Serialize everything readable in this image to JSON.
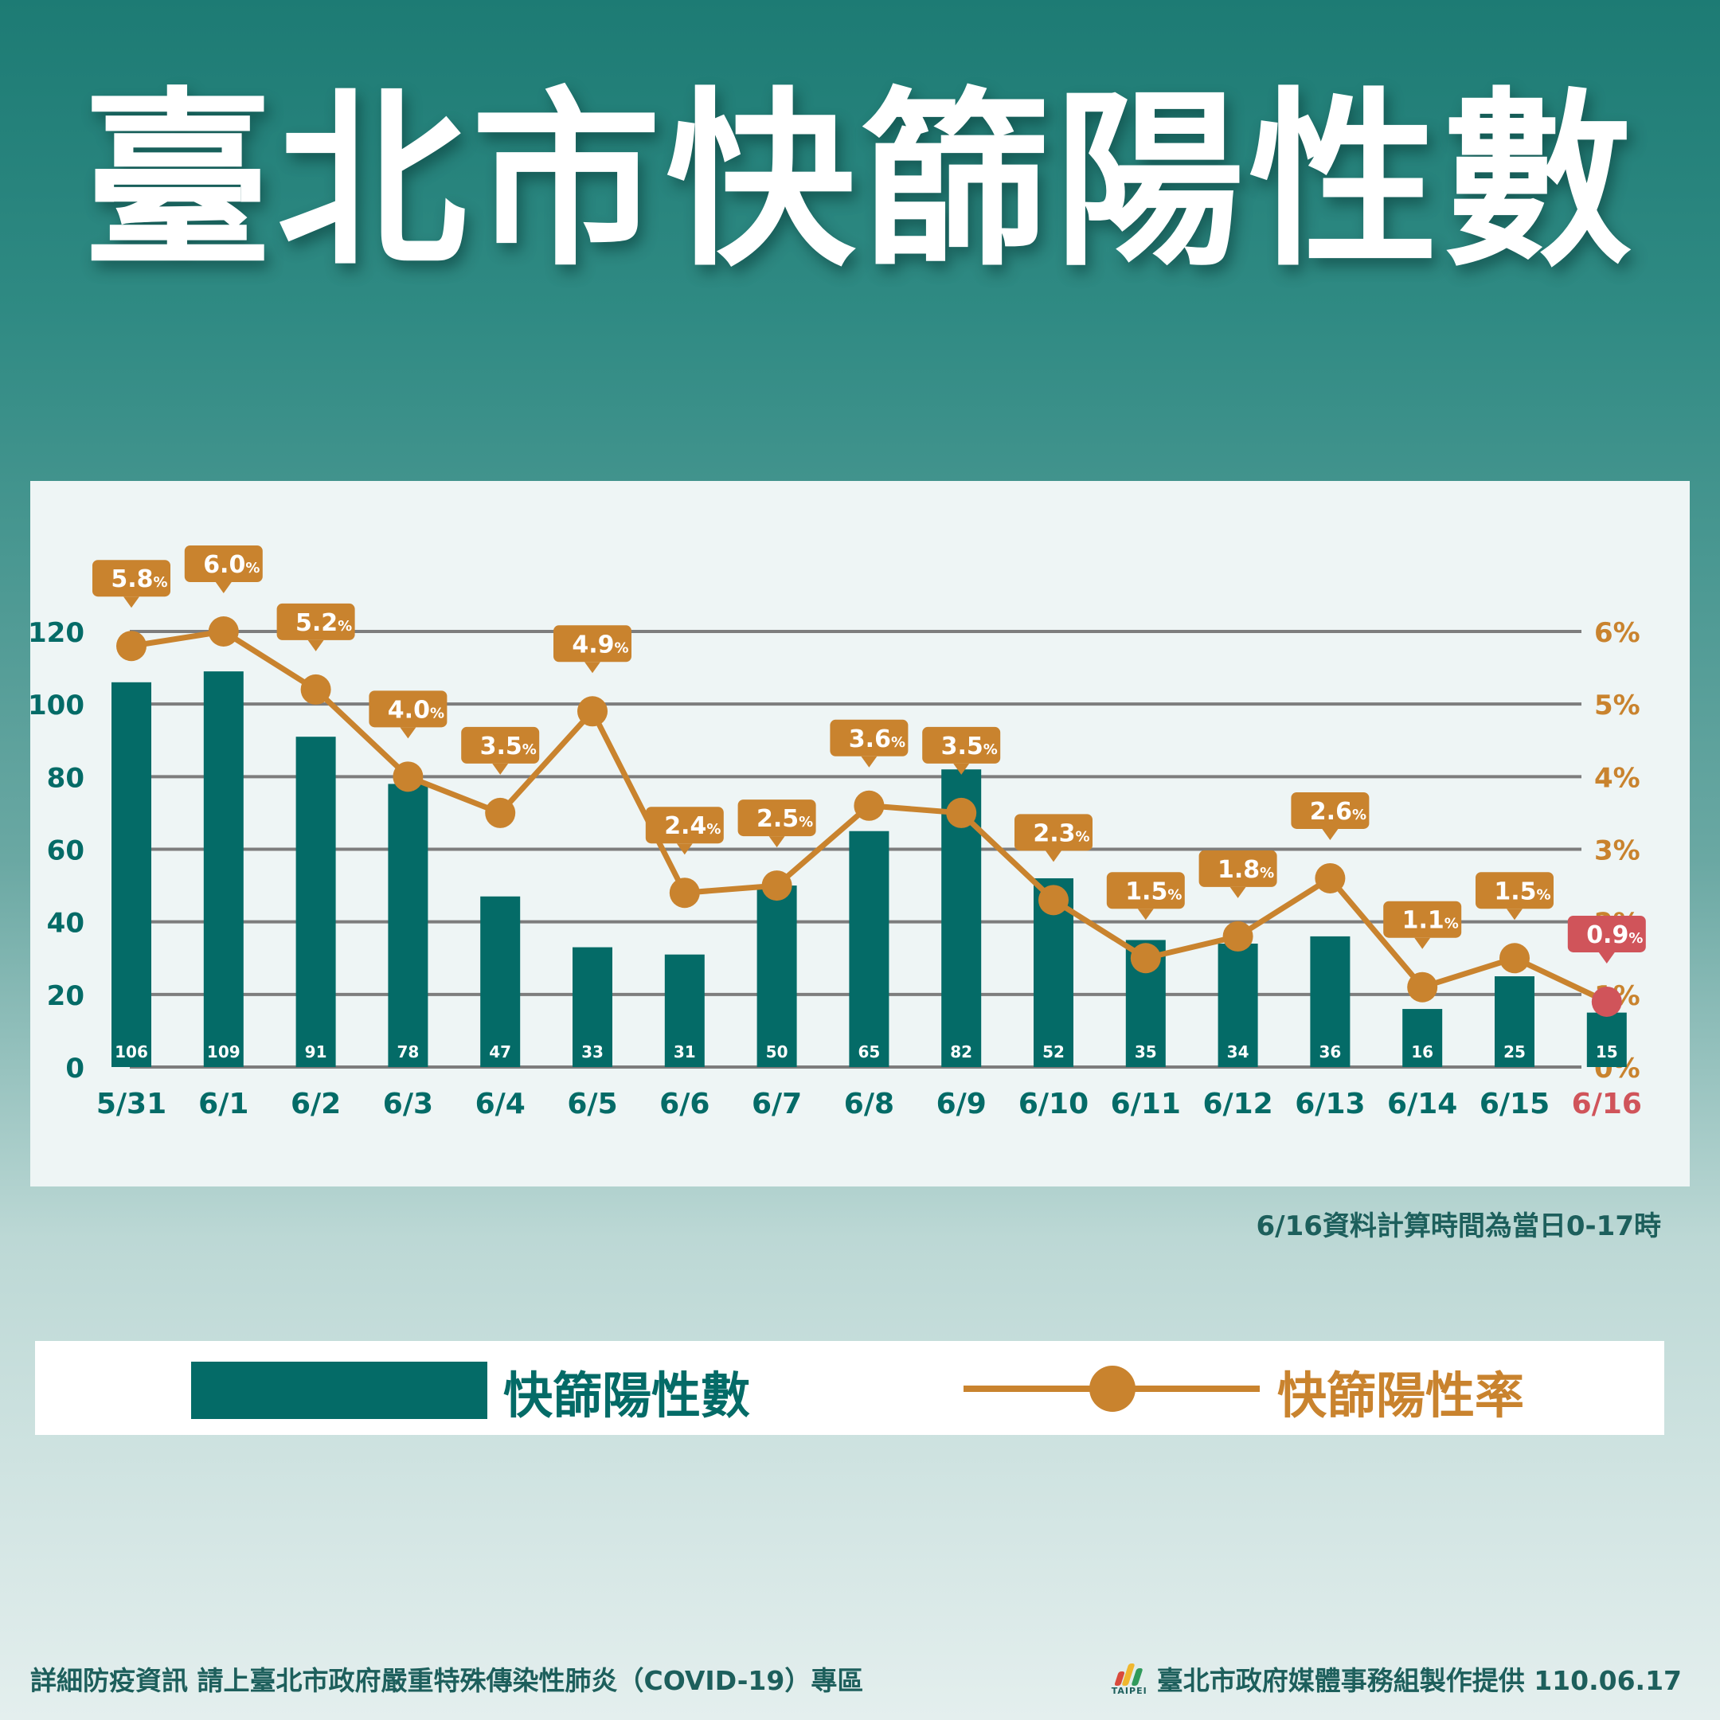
{
  "title": "臺北市快篩陽性數",
  "note": "6/16資料計算時間為當日0-17時",
  "legend": {
    "bar_label": "快篩陽性數",
    "line_label": "快篩陽性率"
  },
  "footer": {
    "left": "詳細防疫資訊 請上臺北市政府嚴重特殊傳染性肺炎（COVID-19）專區",
    "logo_text": "TAIPEI",
    "right": "臺北市政府媒體事務組製作提供 110.06.17"
  },
  "colors": {
    "bar": "#046b67",
    "line": "#c9832e",
    "highlight": "#d0545a",
    "grid": "#7d7d7d"
  },
  "chart_data": {
    "type": "bar",
    "title": "",
    "xlabel": "",
    "ylabel": "",
    "categories": [
      "5/31",
      "6/1",
      "6/2",
      "6/3",
      "6/4",
      "6/5",
      "6/6",
      "6/7",
      "6/8",
      "6/9",
      "6/10",
      "6/11",
      "6/12",
      "6/13",
      "6/14",
      "6/15",
      "6/16"
    ],
    "highlight_category": "6/16",
    "ylim": [
      0,
      120
    ],
    "yticks": [
      0,
      20,
      40,
      60,
      80,
      100,
      120
    ],
    "y2lim": [
      0,
      6
    ],
    "y2ticks": [
      "0%",
      "1%",
      "2%",
      "3%",
      "4%",
      "5%",
      "6%"
    ],
    "grid": true,
    "series": [
      {
        "name": "快篩陽性數",
        "type": "bar",
        "axis": "left",
        "values": [
          106,
          109,
          91,
          78,
          47,
          33,
          31,
          50,
          65,
          82,
          52,
          35,
          34,
          36,
          16,
          25,
          15
        ],
        "labels": [
          "106",
          "109",
          "91",
          "78",
          "47",
          "33",
          "31",
          "50",
          "65",
          "82",
          "52",
          "35",
          "34",
          "36",
          "16",
          "25",
          "15"
        ]
      },
      {
        "name": "快篩陽性率",
        "type": "line",
        "axis": "right",
        "values": [
          5.8,
          6.0,
          5.2,
          4.0,
          3.5,
          4.9,
          2.4,
          2.5,
          3.6,
          3.5,
          2.3,
          1.5,
          1.8,
          2.6,
          1.1,
          1.5,
          0.9
        ],
        "labels": [
          "5.8",
          "6.0",
          "5.2",
          "4.0",
          "3.5",
          "4.9",
          "2.4",
          "2.5",
          "3.6",
          "3.5",
          "2.3",
          "1.5",
          "1.8",
          "2.6",
          "1.1",
          "1.5",
          "0.9"
        ],
        "unit": "%"
      }
    ]
  }
}
